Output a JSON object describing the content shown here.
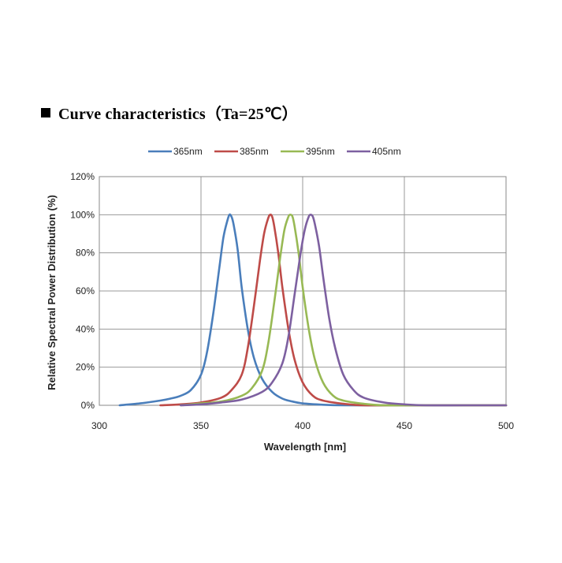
{
  "heading": {
    "marker": "■",
    "title": "Curve characteristics（Ta=25℃）"
  },
  "chart_data": {
    "type": "line",
    "xlabel": "Wavelength [nm]",
    "ylabel": "Relative Spectral Power Distribution (%)",
    "xlim": [
      300,
      500
    ],
    "ylim": [
      0,
      120
    ],
    "xticks": [
      300,
      350,
      400,
      450,
      500
    ],
    "yticks": [
      0,
      20,
      40,
      60,
      80,
      100,
      120
    ],
    "ytick_labels": [
      "0%",
      "20%",
      "40%",
      "60%",
      "80%",
      "100%",
      "120%"
    ],
    "grid": true,
    "legend_position": "top",
    "series": [
      {
        "name": "365nm",
        "color": "#4a7ebb",
        "x": [
          310,
          320,
          330,
          335,
          340,
          345,
          350,
          353,
          356,
          359,
          361,
          363,
          364,
          365,
          366,
          368,
          370,
          373,
          376,
          380,
          385,
          390,
          395,
          400,
          410,
          420,
          440,
          460,
          480,
          500
        ],
        "y": [
          0,
          1,
          2.5,
          3.5,
          5,
          8,
          16,
          28,
          48,
          72,
          88,
          97,
          100,
          99,
          95,
          82,
          62,
          40,
          25,
          14,
          7,
          3.5,
          2,
          1,
          0.3,
          0,
          0,
          0,
          0,
          0
        ]
      },
      {
        "name": "385nm",
        "color": "#be4b48",
        "x": [
          330,
          340,
          350,
          360,
          365,
          370,
          373,
          376,
          379,
          381,
          383,
          384,
          385,
          386,
          388,
          390,
          393,
          396,
          400,
          405,
          410,
          420,
          430,
          450,
          500
        ],
        "y": [
          0,
          0.5,
          1.5,
          4,
          8,
          16,
          30,
          52,
          76,
          90,
          98,
          100,
          99,
          94,
          80,
          62,
          40,
          24,
          12,
          5,
          2.5,
          0.8,
          0,
          0,
          0
        ]
      },
      {
        "name": "395nm",
        "color": "#98b954",
        "x": [
          340,
          350,
          360,
          370,
          375,
          380,
          383,
          386,
          389,
          391,
          393,
          394,
          395,
          396,
          398,
          400,
          403,
          406,
          410,
          415,
          420,
          430,
          440,
          460,
          500
        ],
        "y": [
          0,
          1,
          2,
          5,
          9,
          18,
          32,
          54,
          78,
          92,
          99,
          100,
          99,
          94,
          80,
          62,
          40,
          24,
          12,
          5,
          2.5,
          0.8,
          0,
          0,
          0
        ]
      },
      {
        "name": "405nm",
        "color": "#7d60a0",
        "x": [
          340,
          350,
          360,
          370,
          380,
          385,
          390,
          393,
          396,
          399,
          401,
          403,
          404,
          405,
          406,
          408,
          410,
          413,
          416,
          420,
          425,
          430,
          440,
          450,
          460,
          480,
          500
        ],
        "y": [
          0,
          0.5,
          1.5,
          3,
          7,
          12,
          22,
          36,
          58,
          80,
          92,
          99,
          100,
          99,
          95,
          84,
          68,
          46,
          30,
          16,
          8,
          4,
          1.5,
          0.5,
          0,
          0,
          0
        ]
      }
    ]
  }
}
